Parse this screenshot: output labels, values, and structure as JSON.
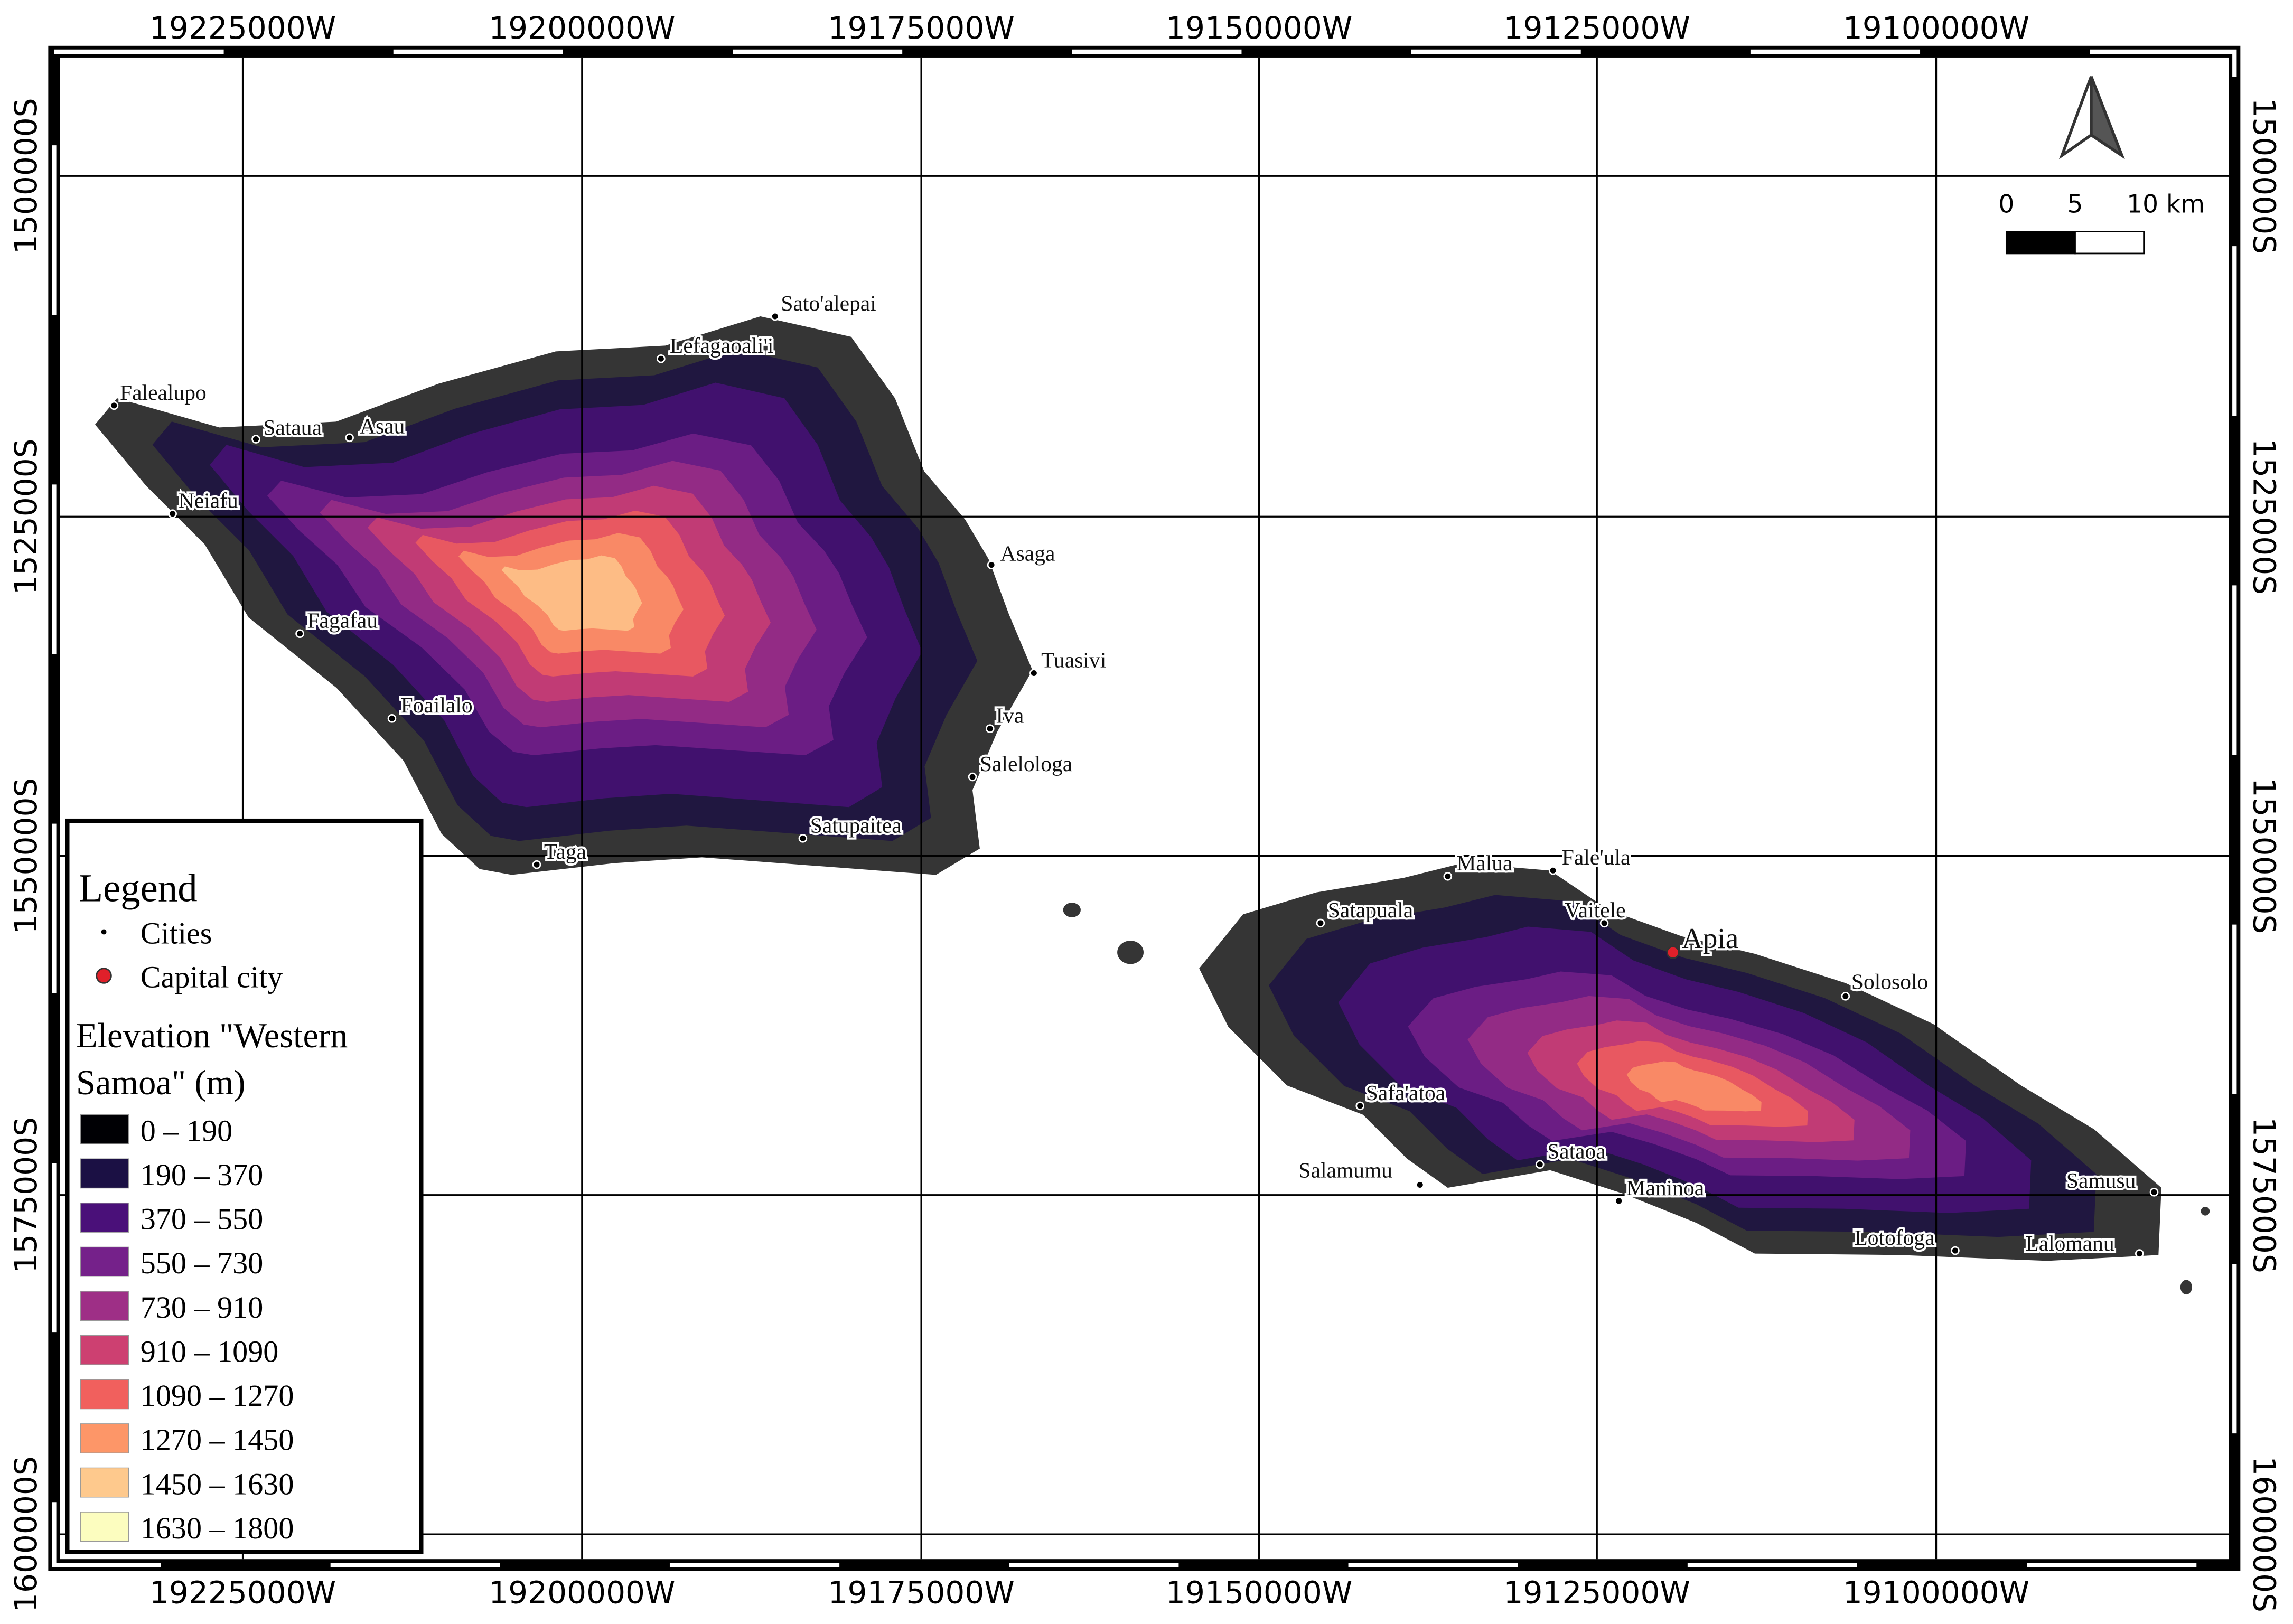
{
  "map": {
    "x_labels": [
      "19225000W",
      "19200000W",
      "19175000W",
      "19150000W",
      "19125000W",
      "19100000W"
    ],
    "y_labels": [
      "1500000S",
      "1525000S",
      "1550000S",
      "1575000S",
      "1600000S"
    ],
    "scale_bar": [
      "0",
      "5",
      "10 km"
    ],
    "cities": [
      "Sato'alepai",
      "Lefagaoali'i",
      "Falealupo",
      "Sataua",
      "Asau",
      "Neiafu",
      "Asaga",
      "Fagafau",
      "Tuasivi",
      "Foailalo",
      "Iva",
      "Salelologa",
      "Satupaitea",
      "Taga",
      "Malua",
      "Fale'ula",
      "Satapuala",
      "Vaitele",
      "Solosolo",
      "Safa'atoa",
      "Sataoa",
      "Salamumu",
      "Maninoa",
      "Samusu",
      "Lotofoga",
      "Lalomanu"
    ],
    "capital": "Apia",
    "legend": {
      "title": "Legend",
      "cities_label": "Cities",
      "capital_label": "Capital city",
      "elevation_title": "Elevation \"Western Samoa\" (m)",
      "classes": [
        {
          "label": "0 – 190",
          "color": "#000004"
        },
        {
          "label": "190 – 370",
          "color": "#1b1044"
        },
        {
          "label": "370 – 550",
          "color": "#4a1079"
        },
        {
          "label": "550 – 730",
          "color": "#75218a"
        },
        {
          "label": "730 – 910",
          "color": "#9e2f86"
        },
        {
          "label": "910 – 1090",
          "color": "#cd4071"
        },
        {
          "label": "1090 – 1270",
          "color": "#f1605d"
        },
        {
          "label": "1270 – 1450",
          "color": "#fd9668"
        },
        {
          "label": "1450 – 1630",
          "color": "#fec98d"
        },
        {
          "label": "1630 – 1800",
          "color": "#fcfdbf"
        }
      ]
    }
  }
}
